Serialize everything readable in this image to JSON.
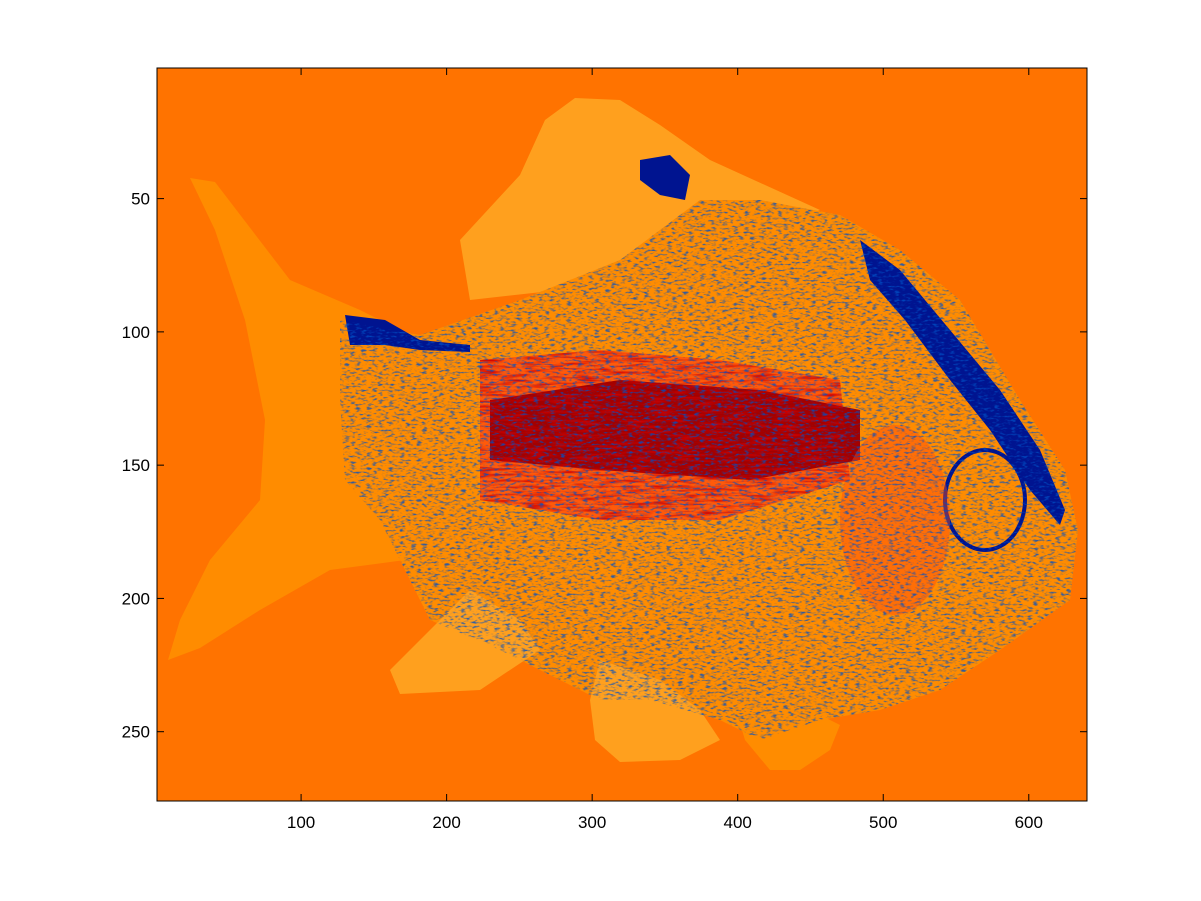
{
  "chart_data": {
    "type": "heatmap",
    "title": "",
    "xlabel": "",
    "ylabel": "",
    "xlim": [
      1,
      640
    ],
    "ylim": [
      1,
      276
    ],
    "y_reversed": true,
    "xticks": [
      100,
      200,
      300,
      400,
      500,
      600
    ],
    "yticks": [
      50,
      100,
      150,
      200,
      250
    ],
    "grid": false,
    "legend": "none",
    "colors": {
      "background": "#ff7300",
      "light": "#ff8c00",
      "lighter": "#ffa01e",
      "red_orange": "#ff4a0d",
      "dark_red": "#a30000",
      "blue": "#001490"
    }
  }
}
